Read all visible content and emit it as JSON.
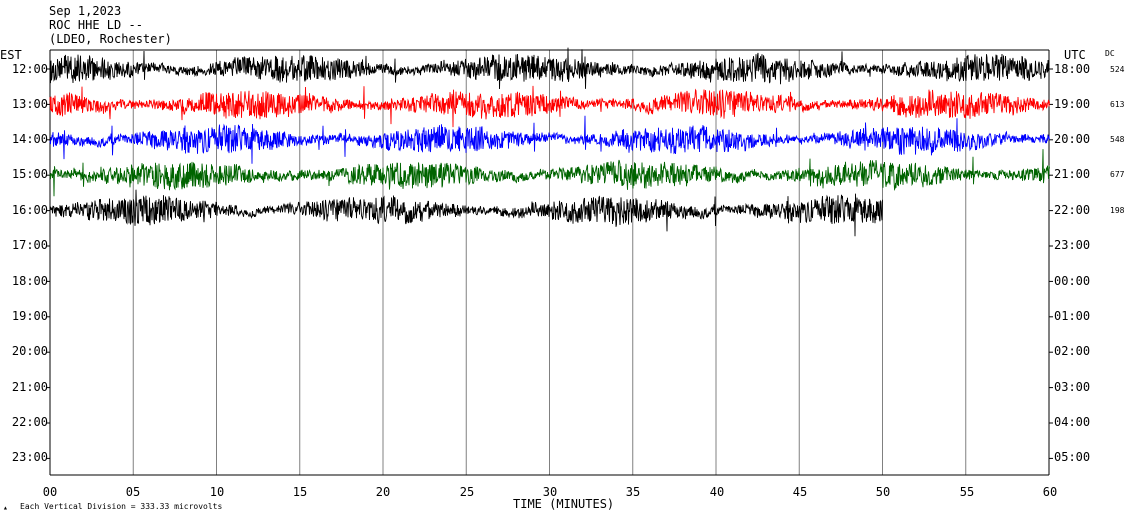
{
  "header": {
    "date": "Sep 1,2023",
    "station": "ROC HHE LD --",
    "location": "(LDEO, Rochester)"
  },
  "chart_data": {
    "type": "line",
    "title": "Sep 1,2023",
    "xlabel": "TIME (MINUTES)",
    "left_axis_label": "EST",
    "right_axis_label": "UTC",
    "dc_label": "DC",
    "xlim": [
      0,
      60
    ],
    "x_ticks": [
      "00",
      "05",
      "10",
      "15",
      "20",
      "25",
      "30",
      "35",
      "40",
      "45",
      "50",
      "55",
      "60"
    ],
    "est_labels": [
      "12:00",
      "13:00",
      "14:00",
      "15:00",
      "16:00",
      "17:00",
      "18:00",
      "19:00",
      "20:00",
      "21:00",
      "22:00",
      "23:00"
    ],
    "utc_labels": [
      "18:00",
      "19:00",
      "20:00",
      "21:00",
      "22:00",
      "23:00",
      "00:00",
      "01:00",
      "02:00",
      "03:00",
      "04:00",
      "05:00"
    ],
    "dc_values": [
      "524",
      "613",
      "548",
      "677",
      "198"
    ],
    "trace_colors": [
      "#000000",
      "#ff0000",
      "#0000ff",
      "#006400",
      "#000000"
    ],
    "traces_end_minute": [
      60,
      60,
      60,
      60,
      50
    ],
    "scale_note": "Each Vertical Division =  333.33 microvolts"
  }
}
